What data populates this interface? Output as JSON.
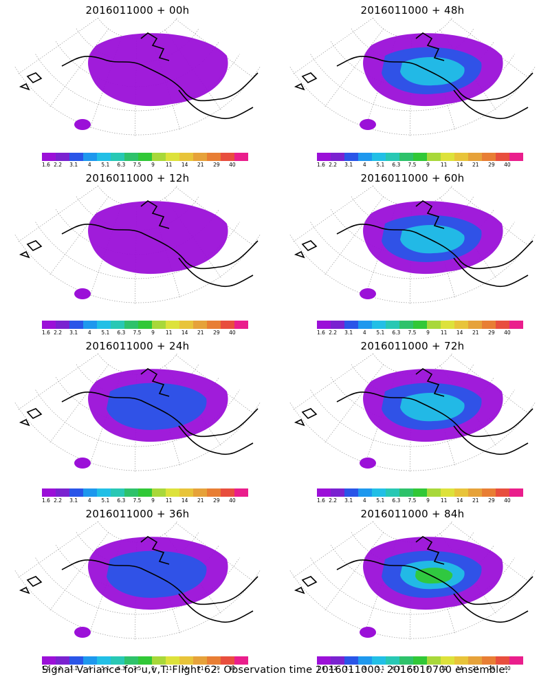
{
  "panels": [
    {
      "title": "2016011000 + 00h",
      "level": 0
    },
    {
      "title": "2016011000 + 48h",
      "level": 2
    },
    {
      "title": "2016011000 + 12h",
      "level": 0.6
    },
    {
      "title": "2016011000 + 60h",
      "level": 2.4
    },
    {
      "title": "2016011000 + 24h",
      "level": 1.0
    },
    {
      "title": "2016011000 + 72h",
      "level": 2.8
    },
    {
      "title": "2016011000 + 36h",
      "level": 1.5
    },
    {
      "title": "2016011000 + 84h",
      "level": 3.2
    }
  ],
  "colorbar": {
    "colors": [
      "#9b10d8",
      "#7a22d0",
      "#2a55e8",
      "#1e98ee",
      "#22bfe6",
      "#28c8b4",
      "#2ec26b",
      "#31c837",
      "#a8d83a",
      "#dde23b",
      "#e8c43a",
      "#e6a23a",
      "#e87e34",
      "#e84e3e",
      "#ea1e8c"
    ],
    "ticks": [
      "1.6",
      "2.2",
      "3.1",
      "4",
      "5.1",
      "6.3",
      "7.5",
      "9",
      "11",
      "14",
      "21",
      "29",
      "40"
    ]
  },
  "caption": "Signal Variance for u,v,T. Flight 62. Observation time 2016011000. 2016010700 ensemble."
}
